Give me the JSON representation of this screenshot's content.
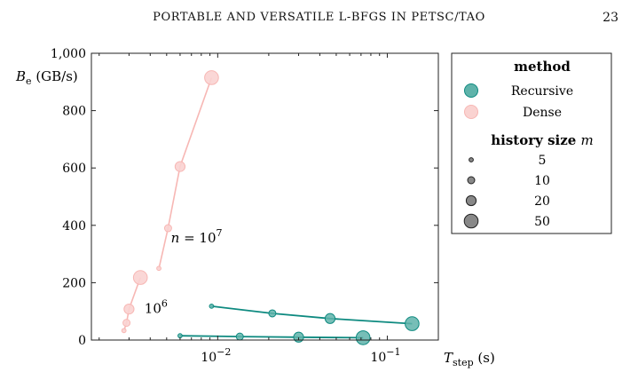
{
  "header": {
    "running_title": "PORTABLE AND VERSATILE L-BFGS IN PETSC/TAO",
    "page_number": "23"
  },
  "colors": {
    "recursive": "#0e8a80",
    "recursive_fill": "#5fb3aa",
    "dense": "#f7b7b4",
    "dense_fill": "#fad3d1"
  },
  "chart_data": {
    "type": "scatter",
    "x_scale": "log",
    "xlim": [
      0.0018,
      0.2
    ],
    "ylim": [
      0,
      1000
    ],
    "x_ticks": [
      {
        "value": 0.01,
        "label": "10",
        "exp": "−2"
      },
      {
        "value": 0.1,
        "label": "10",
        "exp": "−1"
      }
    ],
    "y_ticks": [
      {
        "value": 0,
        "label": "0"
      },
      {
        "value": 200,
        "label": "200"
      },
      {
        "value": 400,
        "label": "400"
      },
      {
        "value": 600,
        "label": "600"
      },
      {
        "value": 800,
        "label": "800"
      },
      {
        "value": 1000,
        "label": "1,000"
      }
    ],
    "xlabel": {
      "main": "T",
      "sub": "step",
      "unit": " (s)"
    },
    "ylabel": {
      "main": "B",
      "sub": "e",
      "unit": " (GB/s)"
    },
    "annotations": [
      {
        "text": "n = 10",
        "sup": "7",
        "x": 0.0053,
        "y": 340
      },
      {
        "text": "10",
        "sup": "6",
        "x": 0.0037,
        "y": 95
      }
    ],
    "legend": {
      "position": "outside-right",
      "method_title": "method",
      "methods": [
        {
          "key": "recursive",
          "label": "Recursive"
        },
        {
          "key": "dense",
          "label": "Dense"
        }
      ],
      "size_title": "history size m",
      "sizes": [
        {
          "m": 5,
          "label": "5"
        },
        {
          "m": 10,
          "label": "10"
        },
        {
          "m": 20,
          "label": "20"
        },
        {
          "m": 50,
          "label": "50"
        }
      ]
    },
    "series": [
      {
        "method": "dense",
        "n": "1e7",
        "points": [
          {
            "m": 5,
            "x": 0.0045,
            "y": 250
          },
          {
            "m": 10,
            "x": 0.0051,
            "y": 390
          },
          {
            "m": 20,
            "x": 0.006,
            "y": 605
          },
          {
            "m": 50,
            "x": 0.0092,
            "y": 915
          }
        ]
      },
      {
        "method": "dense",
        "n": "1e6",
        "points": [
          {
            "m": 5,
            "x": 0.0028,
            "y": 33
          },
          {
            "m": 10,
            "x": 0.0029,
            "y": 60
          },
          {
            "m": 20,
            "x": 0.003,
            "y": 108
          },
          {
            "m": 50,
            "x": 0.0035,
            "y": 218
          }
        ]
      },
      {
        "method": "recursive",
        "n": "1e7",
        "points": [
          {
            "m": 5,
            "x": 0.0092,
            "y": 118
          },
          {
            "m": 10,
            "x": 0.021,
            "y": 93
          },
          {
            "m": 20,
            "x": 0.046,
            "y": 75
          },
          {
            "m": 50,
            "x": 0.14,
            "y": 57
          }
        ]
      },
      {
        "method": "recursive",
        "n": "1e6",
        "points": [
          {
            "m": 5,
            "x": 0.006,
            "y": 15
          },
          {
            "m": 10,
            "x": 0.0135,
            "y": 12
          },
          {
            "m": 20,
            "x": 0.03,
            "y": 10
          },
          {
            "m": 50,
            "x": 0.072,
            "y": 8
          }
        ]
      }
    ]
  }
}
